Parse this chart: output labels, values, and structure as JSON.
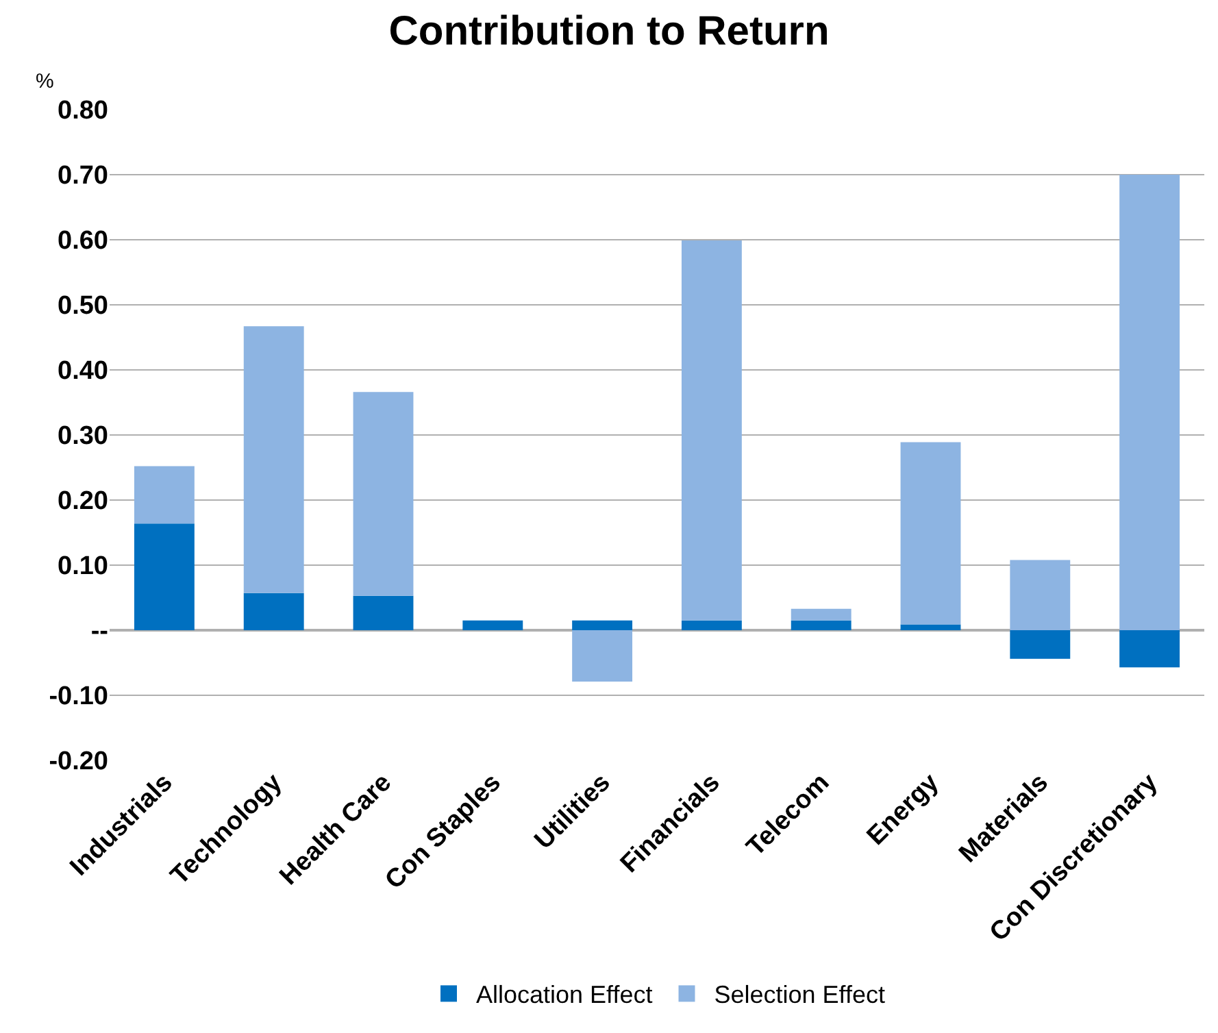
{
  "chart_data": {
    "type": "bar",
    "title": "Contribution to Return",
    "ylabel": "%",
    "categories": [
      "Industrials",
      "Technology",
      "Health Care",
      "Con Staples",
      "Utilities",
      "Financials",
      "Telecom",
      "Energy",
      "Materials",
      "Con Discretionary"
    ],
    "series": [
      {
        "name": "Allocation Effect",
        "color": "#0070c0",
        "values": [
          0.164,
          0.057,
          0.053,
          0.015,
          0.015,
          0.015,
          0.015,
          0.009,
          -0.044,
          -0.057
        ]
      },
      {
        "name": "Selection Effect",
        "color": "#8db4e2",
        "values": [
          0.088,
          0.41,
          0.313,
          0,
          -0.079,
          0.584,
          0.018,
          0.28,
          0.108,
          0.7
        ]
      }
    ],
    "stacked": true,
    "ylim": [
      -0.2,
      0.8
    ],
    "yticks": [
      {
        "value": -0.2,
        "label": "-0.20"
      },
      {
        "value": -0.1,
        "label": "-0.10"
      },
      {
        "value": 0,
        "label": "--"
      },
      {
        "value": 0.1,
        "label": "0.10"
      },
      {
        "value": 0.2,
        "label": "0.20"
      },
      {
        "value": 0.3,
        "label": "0.30"
      },
      {
        "value": 0.4,
        "label": "0.40"
      },
      {
        "value": 0.5,
        "label": "0.50"
      },
      {
        "value": 0.6,
        "label": "0.60"
      },
      {
        "value": 0.7,
        "label": "0.70"
      },
      {
        "value": 0.8,
        "label": "0.80"
      }
    ],
    "grid": "y",
    "legend": "bottom"
  }
}
